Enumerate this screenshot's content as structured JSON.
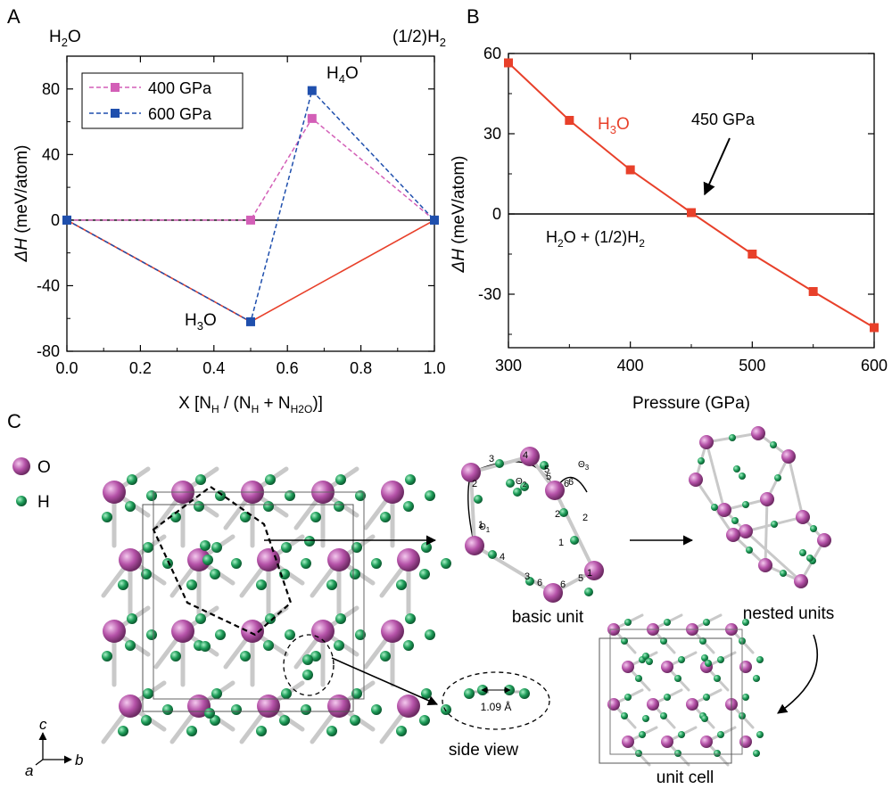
{
  "panels": {
    "a": "A",
    "b": "B",
    "c": "C"
  },
  "colors": {
    "s400": "#d35fb7",
    "s600": "#1f4fad",
    "hull": "#e8402a",
    "h3o": "#e8402a",
    "oxygen": "#b552a8",
    "hydrogen": "#1f9e5a",
    "bond": "#c9c9c9"
  },
  "chart_data": [
    {
      "type": "line",
      "panel": "A",
      "xlabel": "X [NH / (NH + NH2O)]",
      "xlabel_parts": {
        "pre": "X [N",
        "sub1": "H",
        "mid": " / (N",
        "sub2": "H",
        "plus": " + N",
        "sub3": "H2O",
        "post": ")]"
      },
      "ylabel": "ΔH (meV/atom)",
      "xlim": [
        0,
        1
      ],
      "ylim": [
        -80,
        100
      ],
      "xticks": [
        0.0,
        0.2,
        0.4,
        0.6,
        0.8,
        1.0
      ],
      "xtick_labels": [
        "0.0",
        "0.2",
        "0.4",
        "0.6",
        "0.8",
        "1.0"
      ],
      "yticks": [
        -80,
        -40,
        0,
        40,
        80
      ],
      "ytick_labels": [
        "-80",
        "-40",
        "0",
        "40",
        "80"
      ],
      "top_left_label": "H2O",
      "top_right_label": "(1/2)H2",
      "series": [
        {
          "name": "400 GPa",
          "x": [
            0,
            0.5,
            0.667,
            1
          ],
          "y": [
            0,
            0,
            62,
            0
          ]
        },
        {
          "name": "600 GPa",
          "x": [
            0,
            0.5,
            0.667,
            1
          ],
          "y": [
            0,
            -62,
            79,
            0
          ]
        }
      ],
      "hull": {
        "x": [
          0,
          0.5,
          1
        ],
        "y": [
          0,
          -62,
          0
        ]
      },
      "annotations": {
        "h4o": "H4O",
        "h3o": "H3O"
      }
    },
    {
      "type": "line",
      "panel": "B",
      "xlabel": "Pressure (GPa)",
      "ylabel": "ΔH (meV/atom)",
      "xlim": [
        300,
        600
      ],
      "ylim": [
        -50,
        60
      ],
      "xticks": [
        300,
        400,
        500,
        600
      ],
      "xtick_labels": [
        "300",
        "400",
        "500",
        "600"
      ],
      "yticks": [
        -30,
        0,
        30,
        60
      ],
      "ytick_labels": [
        "-30",
        "0",
        "30",
        "60"
      ],
      "series": [
        {
          "name": "H3O",
          "x": [
            300,
            350,
            400,
            450,
            500,
            550,
            600
          ],
          "y": [
            56.5,
            35,
            16.5,
            0.5,
            -15,
            -29,
            -42.5
          ]
        }
      ],
      "annotations": {
        "arrow": "450 GPa",
        "series_label": "H3O",
        "baseline": "H2O + (1/2)H2"
      }
    }
  ],
  "panel_c": {
    "legend": {
      "o": "O",
      "h": "H"
    },
    "theta1": "Θ1",
    "theta2": "Θ2",
    "theta3": "Θ3",
    "labels": {
      "basic_unit": "basic unit",
      "nested_units": "nested units",
      "unit_cell": "unit cell",
      "side_view": "side view",
      "bond_length": "1.09 Å"
    },
    "axes": {
      "c": "c",
      "a": "a",
      "b": "b"
    },
    "ring_numbers": [
      "3",
      "4",
      "5",
      "5",
      "6",
      "2",
      "2",
      "6",
      "2",
      "1",
      "1",
      "1",
      "4",
      "3",
      "6",
      "6",
      "5"
    ]
  }
}
